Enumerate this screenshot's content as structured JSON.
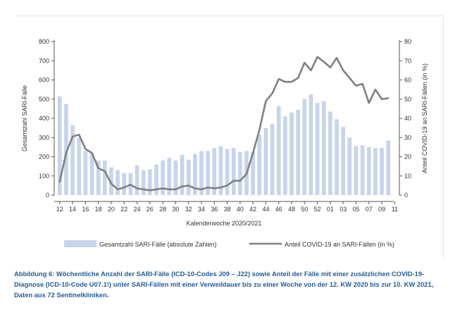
{
  "chart_data": {
    "type": "bar+line",
    "xlabel": "Kalenderwoche 2020/2021",
    "ylabel_left": "Gesamtzahl SARI-Fälle",
    "ylabel_right": "Anteil COVID-19 an SARI-Fällen (in %)",
    "ylim_left": [
      0,
      800
    ],
    "ylim_right": [
      0,
      80
    ],
    "yticks_left": [
      "0",
      "100",
      "200",
      "300",
      "400",
      "500",
      "600",
      "700",
      "800"
    ],
    "yticks_right": [
      "0",
      "10",
      "20",
      "30",
      "40",
      "50",
      "60",
      "70",
      "80"
    ],
    "categories": [
      "12",
      "13",
      "14",
      "15",
      "16",
      "17",
      "18",
      "19",
      "20",
      "21",
      "22",
      "23",
      "24",
      "25",
      "26",
      "27",
      "28",
      "29",
      "30",
      "31",
      "32",
      "33",
      "34",
      "35",
      "36",
      "37",
      "38",
      "39",
      "40",
      "41",
      "42",
      "43",
      "44",
      "45",
      "46",
      "47",
      "48",
      "49",
      "50",
      "51",
      "52",
      "53",
      "01",
      "02",
      "03",
      "04",
      "05",
      "06",
      "07",
      "08",
      "09",
      "10"
    ],
    "xtick_labels": [
      "12",
      "14",
      "16",
      "18",
      "20",
      "22",
      "24",
      "26",
      "28",
      "30",
      "32",
      "34",
      "36",
      "38",
      "40",
      "42",
      "44",
      "46",
      "48",
      "50",
      "52",
      "01",
      "03",
      "05",
      "07",
      "09",
      "11"
    ],
    "grid": false,
    "legend_position": "bottom",
    "series": [
      {
        "name": "Gesamtzahl SARI-Fälle (absolute Zahlen)",
        "type": "bar",
        "axis": "left",
        "color": "#c6d4ec",
        "values": [
          515,
          475,
          365,
          300,
          230,
          220,
          180,
          180,
          145,
          130,
          115,
          115,
          155,
          130,
          135,
          160,
          180,
          195,
          180,
          210,
          185,
          215,
          230,
          230,
          245,
          255,
          240,
          245,
          225,
          230,
          225,
          315,
          350,
          370,
          465,
          410,
          430,
          445,
          500,
          525,
          480,
          490,
          435,
          395,
          355,
          300,
          255,
          260,
          250,
          245,
          245,
          285
        ]
      },
      {
        "name": "Anteil COVID-19 an SARI-Fällen (in %)",
        "type": "line",
        "axis": "right",
        "color": "#808080",
        "values": [
          7,
          22,
          30.5,
          31.5,
          24,
          22,
          14,
          12.5,
          6,
          3,
          4,
          5.5,
          3.5,
          3,
          2.5,
          3,
          3.5,
          3,
          3,
          4.5,
          5,
          3.5,
          3,
          4,
          3.5,
          4,
          5,
          7.5,
          7.5,
          11,
          22,
          34,
          49,
          53,
          60.5,
          59,
          59,
          61,
          69,
          65,
          72,
          69.5,
          66.5,
          71.5,
          65,
          61,
          57,
          58,
          48,
          55,
          50,
          50.5
        ]
      }
    ]
  },
  "caption": "Abbildung 6: Wöchentliche Anzahl der SARI-Fälle (ICD-10-Codes J09 – J22) sowie Anteil der Fälle mit einer zusätzlichen COVID-19-Diagnose (ICD-10-Code U07.1!) unter SARI-Fällen mit einer Verweildauer bis zu einer Woche von der 12. KW 2020 bis zur 10. KW 2021, Daten aus 72 Sentinelkliniken."
}
